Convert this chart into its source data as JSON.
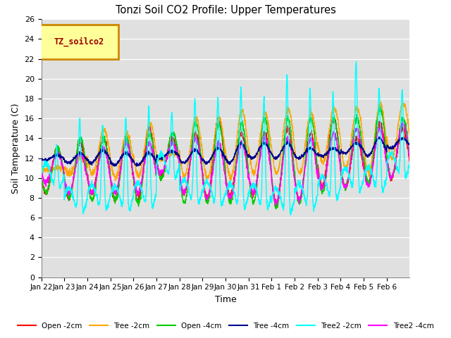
{
  "title": "Tonzi Soil CO2 Profile: Upper Temperatures",
  "xlabel": "Time",
  "ylabel": "Soil Temperature (C)",
  "ylim": [
    0,
    26
  ],
  "yticks": [
    0,
    2,
    4,
    6,
    8,
    10,
    12,
    14,
    16,
    18,
    20,
    22,
    24,
    26
  ],
  "series": {
    "Open -2cm": {
      "color": "#FF0000"
    },
    "Tree -2cm": {
      "color": "#FFA500"
    },
    "Open -4cm": {
      "color": "#00CC00"
    },
    "Tree -4cm": {
      "color": "#00008B"
    },
    "Tree2 -2cm": {
      "color": "#00FFFF"
    },
    "Tree2 -4cm": {
      "color": "#FF00FF"
    }
  },
  "legend_box_color": "#FFFF99",
  "legend_box_edge": "#CC8800",
  "legend_text": "TZ_soilco2",
  "background_color": "#E0E0E0",
  "n_days": 16,
  "date_labels": [
    "Jan 22",
    "Jan 23",
    "Jan 24",
    "Jan 25",
    "Jan 26",
    "Jan 27",
    "Jan 28",
    "Jan 29",
    "Jan 30",
    "Jan 31",
    "Feb 1",
    "Feb 2",
    "Feb 3",
    "Feb 4",
    "Feb 5",
    "Feb 6"
  ],
  "fig_width": 6.4,
  "fig_height": 4.8,
  "dpi": 100
}
